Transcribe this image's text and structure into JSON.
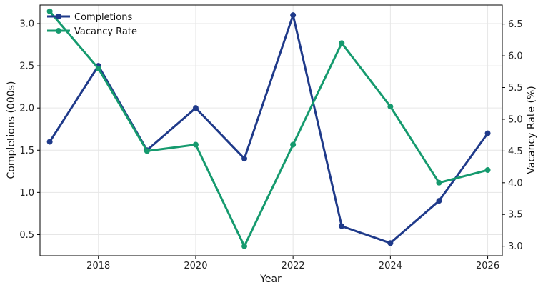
{
  "chart_data": {
    "type": "line",
    "title": "",
    "xlabel": "Year",
    "ylabel": "Completions (000s)",
    "y2label": "Vacancy Rate (%)",
    "x": [
      2017,
      2018,
      2019,
      2020,
      2021,
      2022,
      2023,
      2024,
      2025,
      2026
    ],
    "xlim": [
      2016.8,
      2026.3
    ],
    "xticks": [
      2018,
      2020,
      2022,
      2024,
      2026
    ],
    "ylim": [
      0.25,
      3.22
    ],
    "yticks": [
      0.5,
      1.0,
      1.5,
      2.0,
      2.5,
      3.0
    ],
    "y2lim": [
      2.85,
      6.8
    ],
    "y2ticks": [
      3.0,
      3.5,
      4.0,
      4.5,
      5.0,
      5.5,
      6.0,
      6.5
    ],
    "grid": true,
    "legend_position": "top-left",
    "series": [
      {
        "name": "Completions",
        "axis": "left",
        "color": "#1f3a8a",
        "values": [
          1.6,
          2.5,
          1.5,
          2.0,
          1.4,
          3.1,
          0.6,
          0.4,
          0.9,
          1.7
        ]
      },
      {
        "name": "Vacancy Rate",
        "axis": "right",
        "color": "#159a6e",
        "values": [
          6.7,
          5.8,
          4.5,
          4.6,
          3.0,
          4.6,
          6.2,
          5.2,
          4.0,
          4.2
        ]
      }
    ]
  }
}
